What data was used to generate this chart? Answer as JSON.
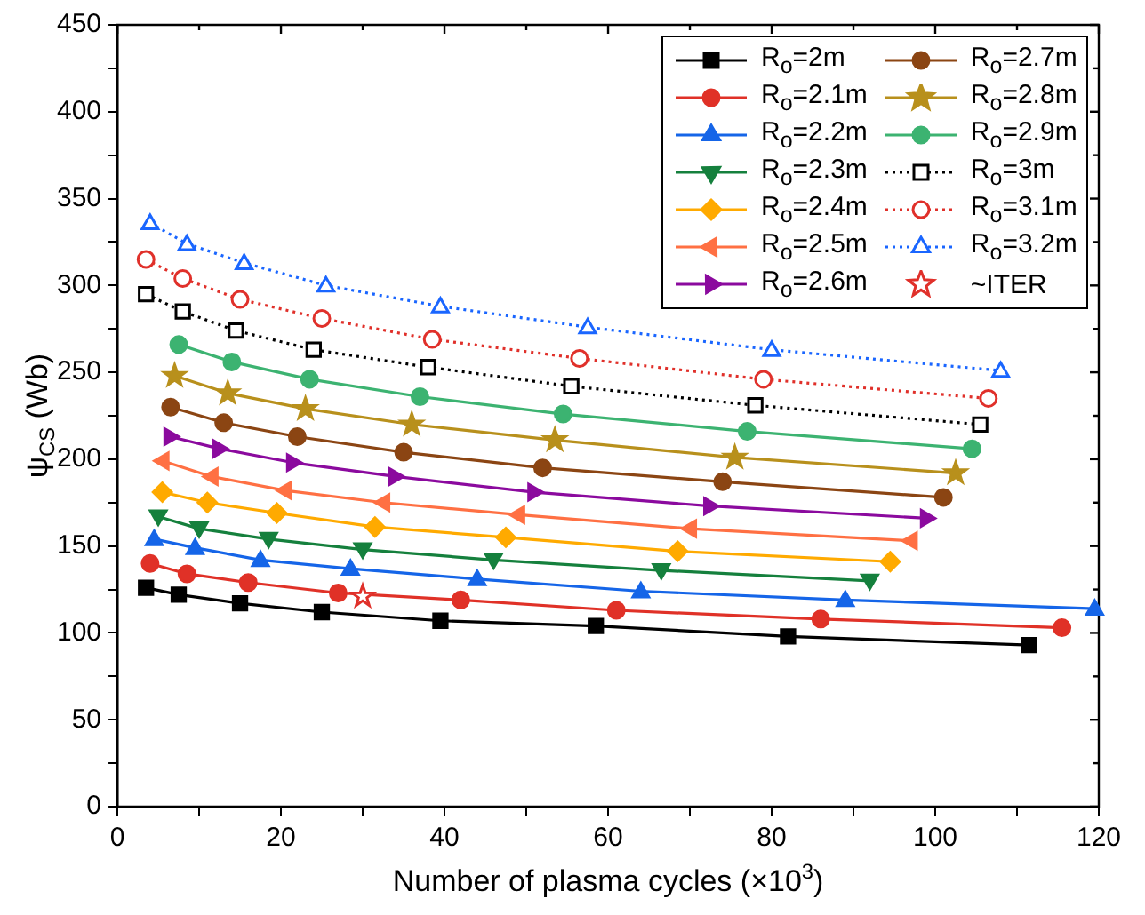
{
  "chart_data": {
    "type": "line",
    "xlabel": "Number of plasma cycles (×10$^{3}$)",
    "ylabel": "ψ$_{CS}$ (Wb)",
    "xlim": [
      0,
      120
    ],
    "xticks": [
      0,
      {
        "value": 10,
        "label": null
      },
      20,
      {
        "value": 30,
        "label": null
      },
      40,
      {
        "value": 50,
        "label": null
      },
      60,
      {
        "value": 70,
        "label": null
      },
      80,
      {
        "value": 90,
        "label": null
      },
      100,
      {
        "value": 110,
        "label": null
      },
      120
    ],
    "ylim": [
      0,
      450
    ],
    "yticks": [
      0,
      {
        "value": 25,
        "label": null
      },
      50,
      {
        "value": 75,
        "label": null
      },
      100,
      {
        "value": 125,
        "label": null
      },
      150,
      {
        "value": 175,
        "label": null
      },
      200,
      {
        "value": 225,
        "label": null
      },
      250,
      {
        "value": 275,
        "label": null
      },
      300,
      {
        "value": 325,
        "label": null
      },
      350,
      {
        "value": 375,
        "label": null
      },
      400,
      {
        "value": 425,
        "label": null
      },
      450
    ],
    "grid": false,
    "legend": "top right",
    "series": [
      {
        "name": "R$_{o}$=2m",
        "color": "#000000",
        "marker": "square",
        "line_style": "solid",
        "x": [
          3.5,
          7.5,
          15,
          25,
          39.5,
          58.5,
          82,
          111.5
        ],
        "values": [
          126,
          122,
          117,
          112,
          107,
          104,
          98,
          93
        ]
      },
      {
        "name": "R$_{o}$=2.1m",
        "color": "#e03127",
        "marker": "circle",
        "line_style": "solid",
        "x": [
          4,
          8.5,
          16,
          27,
          42,
          61,
          86,
          115.5
        ],
        "values": [
          140,
          134,
          129,
          123,
          119,
          113,
          108,
          103
        ]
      },
      {
        "name": "R$_{o}$=2.2m",
        "color": "#1565e8",
        "marker": "triangle",
        "line_style": "solid",
        "x": [
          4.5,
          9.5,
          17.5,
          28.5,
          44,
          64,
          89,
          119.5
        ],
        "values": [
          154,
          149,
          142,
          137,
          131,
          124,
          119,
          114
        ]
      },
      {
        "name": "R$_{o}$=2.3m",
        "color": "#15803d",
        "marker": "triangle-down",
        "line_style": "solid",
        "x": [
          5,
          10,
          18.5,
          30,
          46,
          66.5,
          92
        ],
        "values": [
          167,
          160,
          154,
          148,
          142,
          136,
          130
        ]
      },
      {
        "name": "R$_{o}$=2.4m",
        "color": "#ffaa00",
        "marker": "diamond",
        "line_style": "solid",
        "x": [
          5.5,
          11,
          19.5,
          31.5,
          47.5,
          68.5,
          94.5
        ],
        "values": [
          181,
          175,
          169,
          161,
          155,
          147,
          141
        ]
      },
      {
        "name": "R$_{o}$=2.5m",
        "color": "#ff7043",
        "marker": "triangle-left",
        "line_style": "solid",
        "x": [
          5.5,
          11.5,
          20.5,
          32.5,
          49,
          70,
          97
        ],
        "values": [
          199,
          190,
          182,
          175,
          168,
          160,
          153
        ]
      },
      {
        "name": "R$_{o}$=2.6m",
        "color": "#8b0a9e",
        "marker": "triangle-right",
        "line_style": "solid",
        "x": [
          6.5,
          12.5,
          21.5,
          34,
          51,
          72.5,
          99
        ],
        "values": [
          213,
          206,
          198,
          190,
          181,
          173,
          166
        ]
      },
      {
        "name": "R$_{o}$=2.7m",
        "color": "#8b4513",
        "marker": "circle",
        "line_style": "solid",
        "x": [
          6.5,
          13,
          22,
          35,
          52,
          74,
          101
        ],
        "values": [
          230,
          221,
          213,
          204,
          195,
          187,
          178
        ]
      },
      {
        "name": "R$_{o}$=2.8m",
        "color": "#b8901c",
        "marker": "star",
        "line_style": "solid",
        "x": [
          7,
          13.5,
          23,
          36,
          53.5,
          75.5,
          102.5
        ],
        "values": [
          248,
          238,
          229,
          220,
          211,
          201,
          192
        ]
      },
      {
        "name": "R$_{o}$=2.9m",
        "color": "#3cb371",
        "marker": "circle",
        "line_style": "solid",
        "x": [
          7.5,
          14,
          23.5,
          37,
          54.5,
          77,
          104.5
        ],
        "values": [
          266,
          256,
          246,
          236,
          226,
          216,
          206
        ]
      },
      {
        "name": "R$_{o}$=3m",
        "color": "#000000",
        "marker": "square-open",
        "line_style": "dotted",
        "x": [
          3.5,
          8,
          14.5,
          24,
          38,
          55.5,
          78,
          105.5
        ],
        "values": [
          295,
          285,
          274,
          263,
          253,
          242,
          231,
          220
        ]
      },
      {
        "name": "R$_{o}$=3.1m",
        "color": "#e0302a",
        "marker": "circle-open",
        "line_style": "dotted",
        "x": [
          3.5,
          8,
          15,
          25,
          38.5,
          56.5,
          79,
          106.5
        ],
        "values": [
          315,
          304,
          292,
          281,
          269,
          258,
          246,
          235
        ]
      },
      {
        "name": "R$_{o}$=3.2m",
        "color": "#1a66ff",
        "marker": "triangle-open",
        "line_style": "dotted",
        "x": [
          4,
          8.5,
          15.5,
          25.5,
          39.5,
          57.5,
          80,
          108
        ],
        "values": [
          336,
          324,
          313,
          300,
          288,
          276,
          263,
          251
        ]
      },
      {
        "name": "~ITER",
        "type": "scatter",
        "color": "#e0302a",
        "marker": "star-open",
        "x": [
          30
        ],
        "values": [
          121
        ]
      }
    ]
  }
}
